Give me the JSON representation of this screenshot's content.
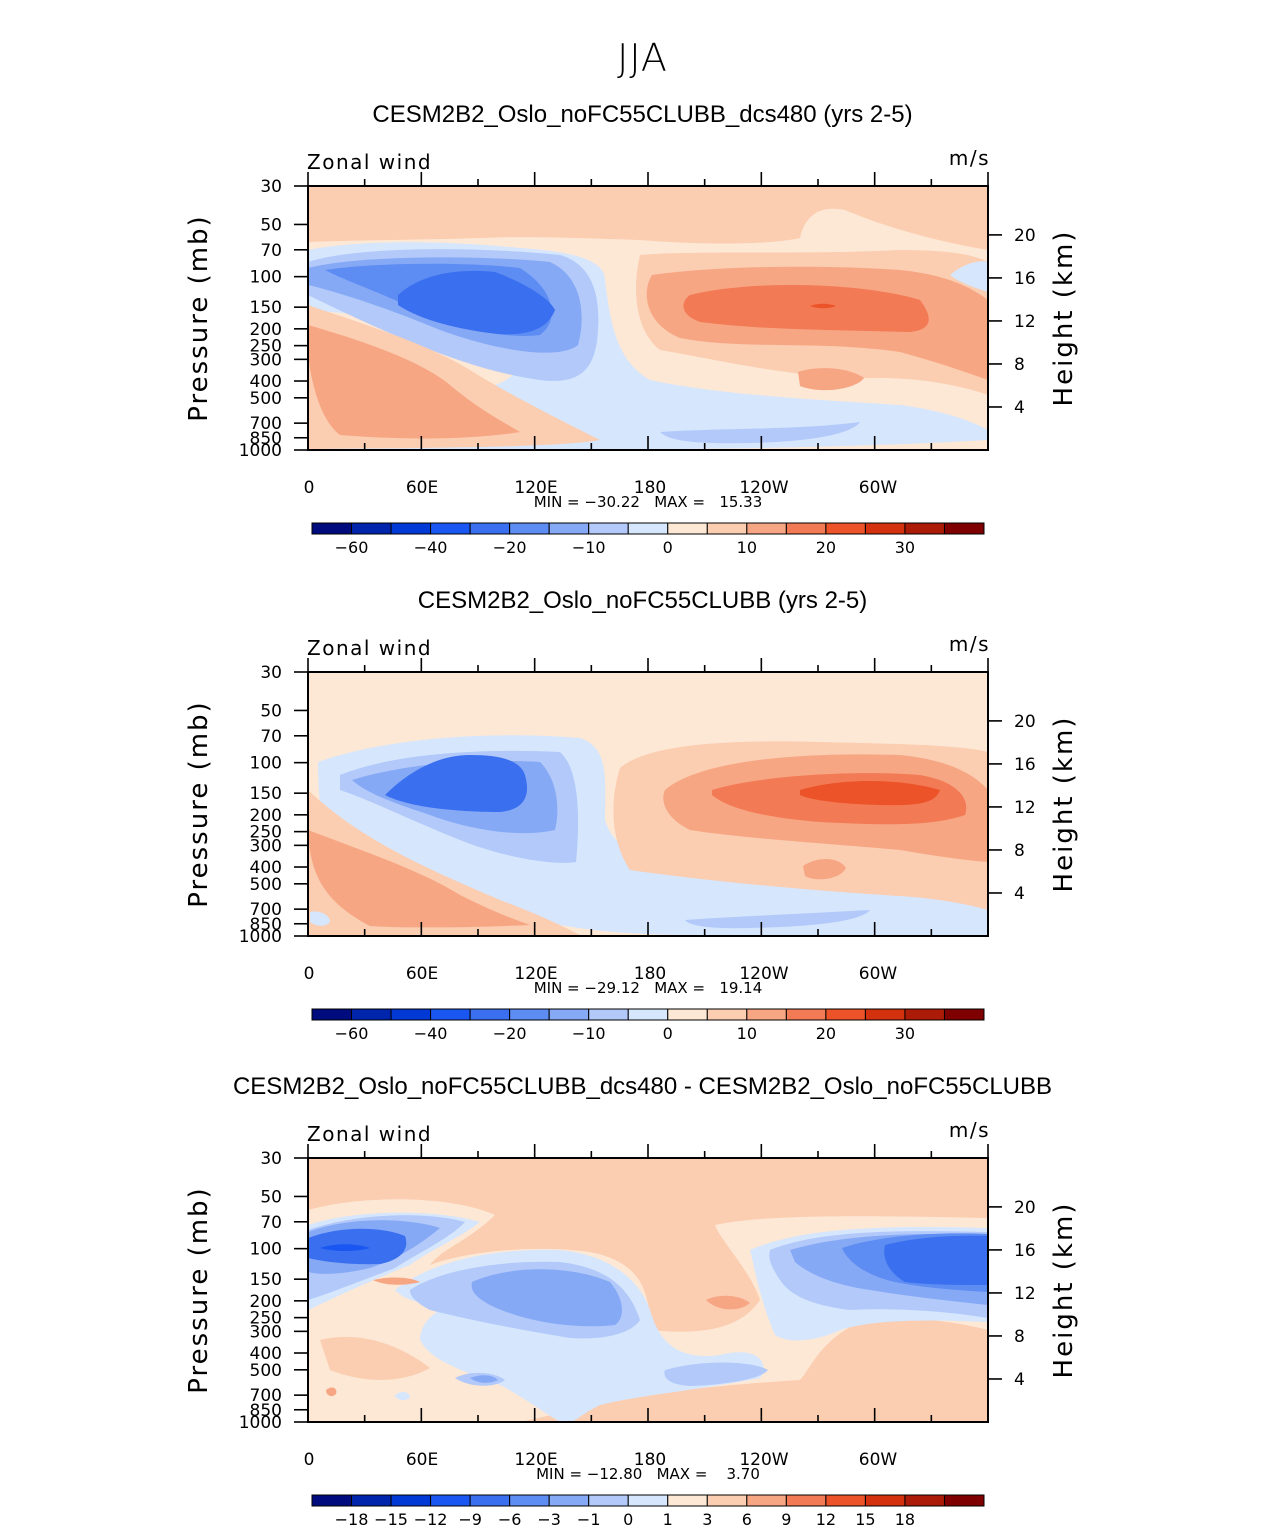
{
  "figure_title": "JJA",
  "chart_data": [
    {
      "type": "heatmap",
      "title": "CESM2B2_Oslo_noFC55CLUBB_dcs480 (yrs 2-5)",
      "variable": "Zonal wind",
      "units": "m/s",
      "ylabel": "Pressure (mb)",
      "y2label": "Height (km)",
      "xticks": [
        "0",
        "60E",
        "120E",
        "180",
        "120W",
        "60W"
      ],
      "yticks": [
        "30",
        "50",
        "70",
        "100",
        "150",
        "200",
        "250",
        "300",
        "400",
        "500",
        "700",
        "850",
        "1000"
      ],
      "y2ticks": [
        "20",
        "16",
        "12",
        "8",
        "4"
      ],
      "stats": "MIN = −30.22   MAX =   15.33",
      "min": -30.22,
      "max": 15.33,
      "colorbar_labels": [
        "−60",
        "−40",
        "−20",
        "−10",
        "0",
        "10",
        "20",
        "30"
      ],
      "colorbar_levels": [
        -70,
        -60,
        -50,
        -40,
        -30,
        -20,
        -15,
        -10,
        -5,
        0,
        5,
        10,
        15,
        20,
        25,
        30,
        35
      ]
    },
    {
      "type": "heatmap",
      "title": "CESM2B2_Oslo_noFC55CLUBB (yrs 2-5)",
      "variable": "Zonal wind",
      "units": "m/s",
      "ylabel": "Pressure (mb)",
      "y2label": "Height (km)",
      "xticks": [
        "0",
        "60E",
        "120E",
        "180",
        "120W",
        "60W"
      ],
      "yticks": [
        "30",
        "50",
        "70",
        "100",
        "150",
        "200",
        "250",
        "300",
        "400",
        "500",
        "700",
        "850",
        "1000"
      ],
      "y2ticks": [
        "20",
        "16",
        "12",
        "8",
        "4"
      ],
      "stats": "MIN = −29.12   MAX =   19.14",
      "min": -29.12,
      "max": 19.14,
      "colorbar_labels": [
        "−60",
        "−40",
        "−20",
        "−10",
        "0",
        "10",
        "20",
        "30"
      ],
      "colorbar_levels": [
        -70,
        -60,
        -50,
        -40,
        -30,
        -20,
        -15,
        -10,
        -5,
        0,
        5,
        10,
        15,
        20,
        25,
        30,
        35
      ]
    },
    {
      "type": "heatmap",
      "title": "CESM2B2_Oslo_noFC55CLUBB_dcs480 - CESM2B2_Oslo_noFC55CLUBB",
      "variable": "Zonal wind",
      "units": "m/s",
      "ylabel": "Pressure (mb)",
      "y2label": "Height (km)",
      "xticks": [
        "0",
        "60E",
        "120E",
        "180",
        "120W",
        "60W"
      ],
      "yticks": [
        "30",
        "50",
        "70",
        "100",
        "150",
        "200",
        "250",
        "300",
        "400",
        "500",
        "700",
        "850",
        "1000"
      ],
      "y2ticks": [
        "20",
        "16",
        "12",
        "8",
        "4"
      ],
      "stats": "MIN = −12.80   MAX =    3.70",
      "min": -12.8,
      "max": 3.7,
      "colorbar_labels": [
        "−18",
        "−15",
        "−12",
        "−9",
        "−6",
        "−3",
        "−1",
        "0",
        "1",
        "3",
        "6",
        "9",
        "12",
        "15",
        "18"
      ],
      "colorbar_levels": [
        -21,
        -18,
        -15,
        -12,
        -9,
        -6,
        -3,
        -1,
        0,
        1,
        3,
        6,
        9,
        12,
        15,
        18,
        21
      ]
    }
  ],
  "palette": [
    "#000c7d",
    "#0025ad",
    "#0039d6",
    "#1a57f2",
    "#3a6ff0",
    "#5d8cf2",
    "#86a9f6",
    "#b2c9fa",
    "#d6e6fd",
    "#fde8d5",
    "#fbcdb1",
    "#f7a684",
    "#f27a55",
    "#ec5329",
    "#d4320e",
    "#ac1b08",
    "#7f0000"
  ]
}
